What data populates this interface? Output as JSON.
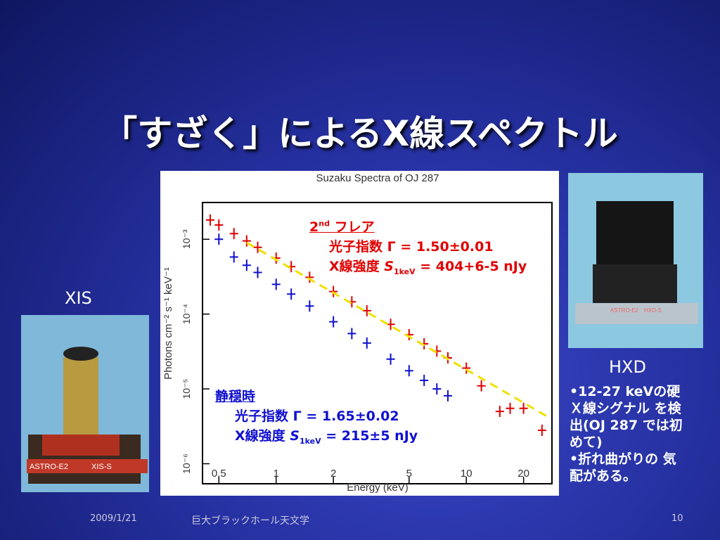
{
  "slide": {
    "title": "「すざく」によるX線スペクトル",
    "left_label": "XIS",
    "right_label": "HXD",
    "photo_left_caption": [
      "ASTRO-E2",
      "XIS-S"
    ],
    "photo_right_caption": [
      "ASTRO-E2",
      "HXD-S"
    ],
    "bullets": [
      "•12-27 keVの硬 Ｘ線シグナル を検出(OJ 287 では初めて)",
      "•折れ曲がりの 気配がある。"
    ],
    "footer": {
      "date": "2009/1/21",
      "course": "巨大ブラックホール天文学",
      "page": "10"
    }
  },
  "flare_note": {
    "sup_a": "2",
    "sup_b": "nd",
    "head": " フレア",
    "index": "光子指数 Γ = 1.50±0.01",
    "flux_a": "X線強度 ",
    "flux_s": "S",
    "flux_sub": "1keV",
    "flux_b": " = 404+6-5 nJy"
  },
  "quiet_note": {
    "head": "静穏時",
    "index": "光子指数 Γ = 1.65±0.02",
    "flux_a": "X線強度 ",
    "flux_s": "S",
    "flux_sub": "1keV",
    "flux_b": " = 215±5 nJy"
  },
  "chart_data": {
    "type": "scatter",
    "title": "Suzaku Spectra of OJ 287",
    "x_label": "Energy (keV)",
    "y_label": "Photons cm⁻² s⁻¹ keV⁻¹",
    "log_x": true,
    "log_y": true,
    "xlim": [
      0.41,
      28.2
    ],
    "ylim": [
      0.0031,
      5.4e-07
    ],
    "xticks": [
      0.5,
      1,
      2,
      5,
      10,
      20
    ],
    "yticks": [
      {
        "value": 0.001,
        "label": "10⁻³"
      },
      {
        "value": 0.0001,
        "label": "10⁻⁴"
      },
      {
        "value": 1e-05,
        "label": "10⁻⁵"
      },
      {
        "value": 1e-06,
        "label": "10⁻⁶"
      }
    ],
    "series": [
      {
        "name": "2nd flare",
        "color": "#e00000",
        "x": [
          0.45,
          0.5,
          0.6,
          0.7,
          0.8,
          1,
          1.2,
          1.5,
          2,
          2.5,
          3,
          4,
          5,
          6,
          7,
          8,
          10,
          12,
          15,
          17,
          20,
          25
        ],
        "values": [
          0.00181,
          0.00155,
          0.00119,
          0.00095,
          0.00078,
          0.00056,
          0.00043,
          0.00031,
          0.0002,
          0.000146,
          0.000111,
          7.3e-05,
          5.3e-05,
          4e-05,
          3.2e-05,
          2.6e-05,
          1.9e-05,
          1.1e-05,
          5e-06,
          5.5e-06,
          5.5e-06,
          2.8e-06
        ]
      },
      {
        "name": "quiet",
        "color": "#1010d0",
        "x": [
          0.5,
          0.6,
          0.7,
          0.8,
          1,
          1.2,
          1.5,
          2,
          2.5,
          3,
          4,
          5,
          6,
          7,
          8
        ],
        "values": [
          0.001,
          0.00058,
          0.00045,
          0.00036,
          0.00025,
          0.000185,
          0.000128,
          7.9e-05,
          5.5e-05,
          4.1e-05,
          2.5e-05,
          1.75e-05,
          1.3e-05,
          1e-05,
          8.1e-06
        ]
      },
      {
        "name": "model",
        "color": "#f0e000",
        "dashed": true,
        "x": [
          0.7,
          27
        ],
        "values": [
          0.0009,
          4.2e-06
        ]
      }
    ]
  }
}
